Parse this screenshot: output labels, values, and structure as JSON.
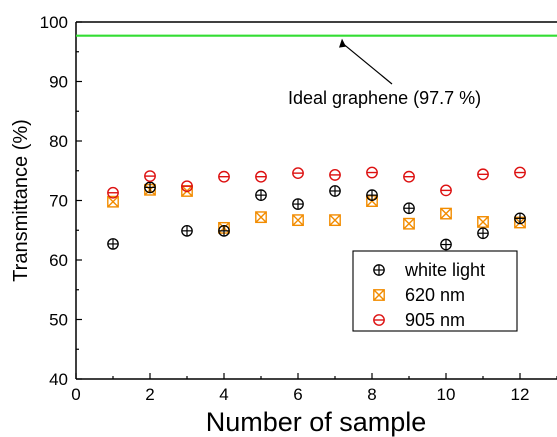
{
  "chart_data": {
    "type": "scatter",
    "xlabel": "Number of sample",
    "ylabel": "Transmittance (%)",
    "xlim": [
      0,
      13
    ],
    "ylim": [
      40,
      100
    ],
    "xticks": [
      0,
      2,
      4,
      6,
      8,
      10,
      12
    ],
    "yticks": [
      40,
      50,
      60,
      70,
      80,
      90,
      100
    ],
    "x_tick_labels": [
      "0",
      "2",
      "4",
      "6",
      "8",
      "10",
      "12"
    ],
    "y_tick_labels": [
      "40",
      "50",
      "60",
      "70",
      "80",
      "90",
      "100"
    ],
    "grid": false,
    "legend_position": "bottom-right",
    "reference_line": {
      "y": 97.7,
      "color": "#33dd33"
    },
    "annotation": {
      "text": "Ideal graphene (97.7 %)",
      "points_to": {
        "x": 8,
        "y": 97.7
      }
    },
    "series": [
      {
        "name": "white light",
        "marker": "circle-plus",
        "color": "#000000",
        "x": [
          1,
          2,
          3,
          4,
          5,
          6,
          7,
          8,
          9,
          10,
          11,
          12
        ],
        "y": [
          62.7,
          72.2,
          64.9,
          64.9,
          70.9,
          69.4,
          71.6,
          70.9,
          68.7,
          62.6,
          64.5,
          67.0
        ]
      },
      {
        "name": "620 nm",
        "marker": "square-x",
        "color": "#f28c00",
        "x": [
          1,
          2,
          3,
          4,
          5,
          6,
          7,
          8,
          9,
          10,
          11,
          12
        ],
        "y": [
          69.8,
          71.8,
          71.6,
          65.4,
          67.2,
          66.7,
          66.7,
          69.9,
          66.1,
          67.8,
          66.4,
          66.3
        ]
      },
      {
        "name": "905 nm",
        "marker": "circle-minus",
        "color": "#dd1111",
        "x": [
          1,
          2,
          3,
          4,
          5,
          6,
          7,
          8,
          9,
          10,
          11,
          12
        ],
        "y": [
          71.3,
          74.1,
          72.4,
          74.0,
          74.0,
          74.6,
          74.3,
          74.7,
          74.0,
          71.7,
          74.4,
          74.7
        ]
      }
    ]
  }
}
